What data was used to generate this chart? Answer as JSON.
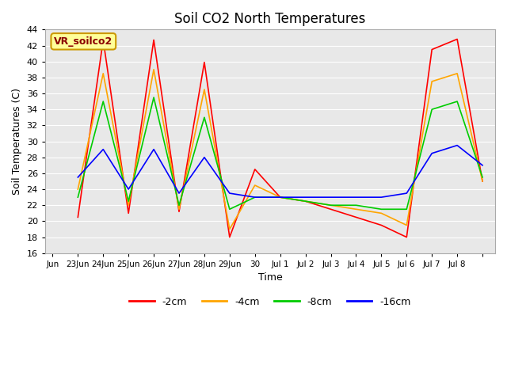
{
  "title": "Soil CO2 North Temperatures",
  "xlabel": "Time",
  "ylabel": "Soil Temperatures (C)",
  "ylim": [
    16,
    44
  ],
  "yticks": [
    16,
    18,
    20,
    22,
    24,
    26,
    28,
    30,
    32,
    34,
    36,
    38,
    40,
    42,
    44
  ],
  "bg_color": "#e8e8e8",
  "legend_label": "VR_soilco2",
  "series": {
    "-2cm": {
      "color": "#ff0000",
      "x": [
        1,
        2,
        3,
        4,
        5,
        6,
        7,
        8,
        9,
        10,
        11,
        12,
        13,
        14,
        15,
        16,
        17
      ],
      "y": [
        20.5,
        42.7,
        21.0,
        42.7,
        21.2,
        39.9,
        18.0,
        26.5,
        23.0,
        22.5,
        21.5,
        20.5,
        19.5,
        18.0,
        41.5,
        42.8,
        25.0
      ]
    },
    "-4cm": {
      "color": "#ffa500",
      "x": [
        1,
        2,
        3,
        4,
        5,
        6,
        7,
        8,
        9,
        10,
        11,
        12,
        13,
        14,
        15,
        16,
        17
      ],
      "y": [
        24.0,
        38.5,
        22.0,
        39.0,
        21.5,
        36.5,
        19.0,
        24.5,
        23.0,
        22.5,
        22.0,
        21.5,
        21.0,
        19.5,
        37.5,
        38.5,
        25.0
      ]
    },
    "-8cm": {
      "color": "#00cc00",
      "x": [
        1,
        2,
        3,
        4,
        5,
        6,
        7,
        8,
        9,
        10,
        11,
        12,
        13,
        14,
        15,
        16,
        17
      ],
      "y": [
        23.0,
        35.0,
        22.5,
        35.5,
        22.0,
        33.0,
        21.5,
        23.0,
        23.0,
        22.5,
        22.0,
        22.0,
        21.5,
        21.5,
        34.0,
        35.0,
        25.5
      ]
    },
    "-16cm": {
      "color": "#0000ff",
      "x": [
        1,
        2,
        3,
        4,
        5,
        6,
        7,
        8,
        9,
        10,
        11,
        12,
        13,
        14,
        15,
        16,
        17
      ],
      "y": [
        25.5,
        29.0,
        24.0,
        29.0,
        23.5,
        28.0,
        23.5,
        23.0,
        23.0,
        23.0,
        23.0,
        23.0,
        23.0,
        23.5,
        28.5,
        29.5,
        27.0
      ]
    }
  },
  "xtick_positions": [
    0,
    1,
    2,
    3,
    4,
    5,
    6,
    7,
    8,
    9,
    10,
    11,
    12,
    13,
    14,
    15,
    16,
    17
  ],
  "xtick_labels": [
    "Jun",
    "23Jun",
    "24Jun",
    "25Jun",
    "26Jun",
    "27Jun",
    "28Jun",
    "29Jun",
    "30",
    "Jul 1",
    "Jul 2",
    "Jul 3",
    "Jul 4",
    "Jul 5",
    "Jul 6",
    "Jul 7",
    "Jul 8",
    ""
  ],
  "series_order": [
    "-2cm",
    "-4cm",
    "-8cm",
    "-16cm"
  ]
}
